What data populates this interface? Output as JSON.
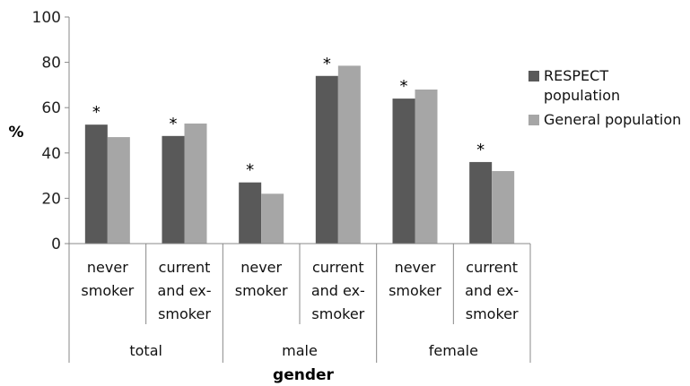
{
  "chart_data": {
    "type": "bar",
    "ylabel": "%",
    "xlabel": "gender",
    "ylim": [
      0,
      100
    ],
    "yticks": [
      0,
      20,
      40,
      60,
      80,
      100
    ],
    "grid": false,
    "legend_position": "right",
    "categories": [
      {
        "group": "total",
        "label": [
          "never",
          "smoker"
        ]
      },
      {
        "group": "total",
        "label": [
          "current",
          "and ex-",
          "smoker"
        ]
      },
      {
        "group": "male",
        "label": [
          "never",
          "smoker"
        ]
      },
      {
        "group": "male",
        "label": [
          "current",
          "and ex-",
          "smoker"
        ]
      },
      {
        "group": "female",
        "label": [
          "never",
          "smoker"
        ]
      },
      {
        "group": "female",
        "label": [
          "current",
          "and ex-",
          "smoker"
        ]
      }
    ],
    "groups": [
      "total",
      "male",
      "female"
    ],
    "series": [
      {
        "name": [
          "RESPECT",
          "population"
        ],
        "color": "#595959",
        "values": [
          52.5,
          47.5,
          27,
          74,
          64,
          36
        ]
      },
      {
        "name": [
          "General population"
        ],
        "color": "#a6a6a6",
        "values": [
          47,
          53,
          22,
          78.5,
          68,
          32
        ]
      }
    ],
    "significance_marker": "*",
    "significant": [
      true,
      true,
      true,
      true,
      true,
      true
    ]
  }
}
